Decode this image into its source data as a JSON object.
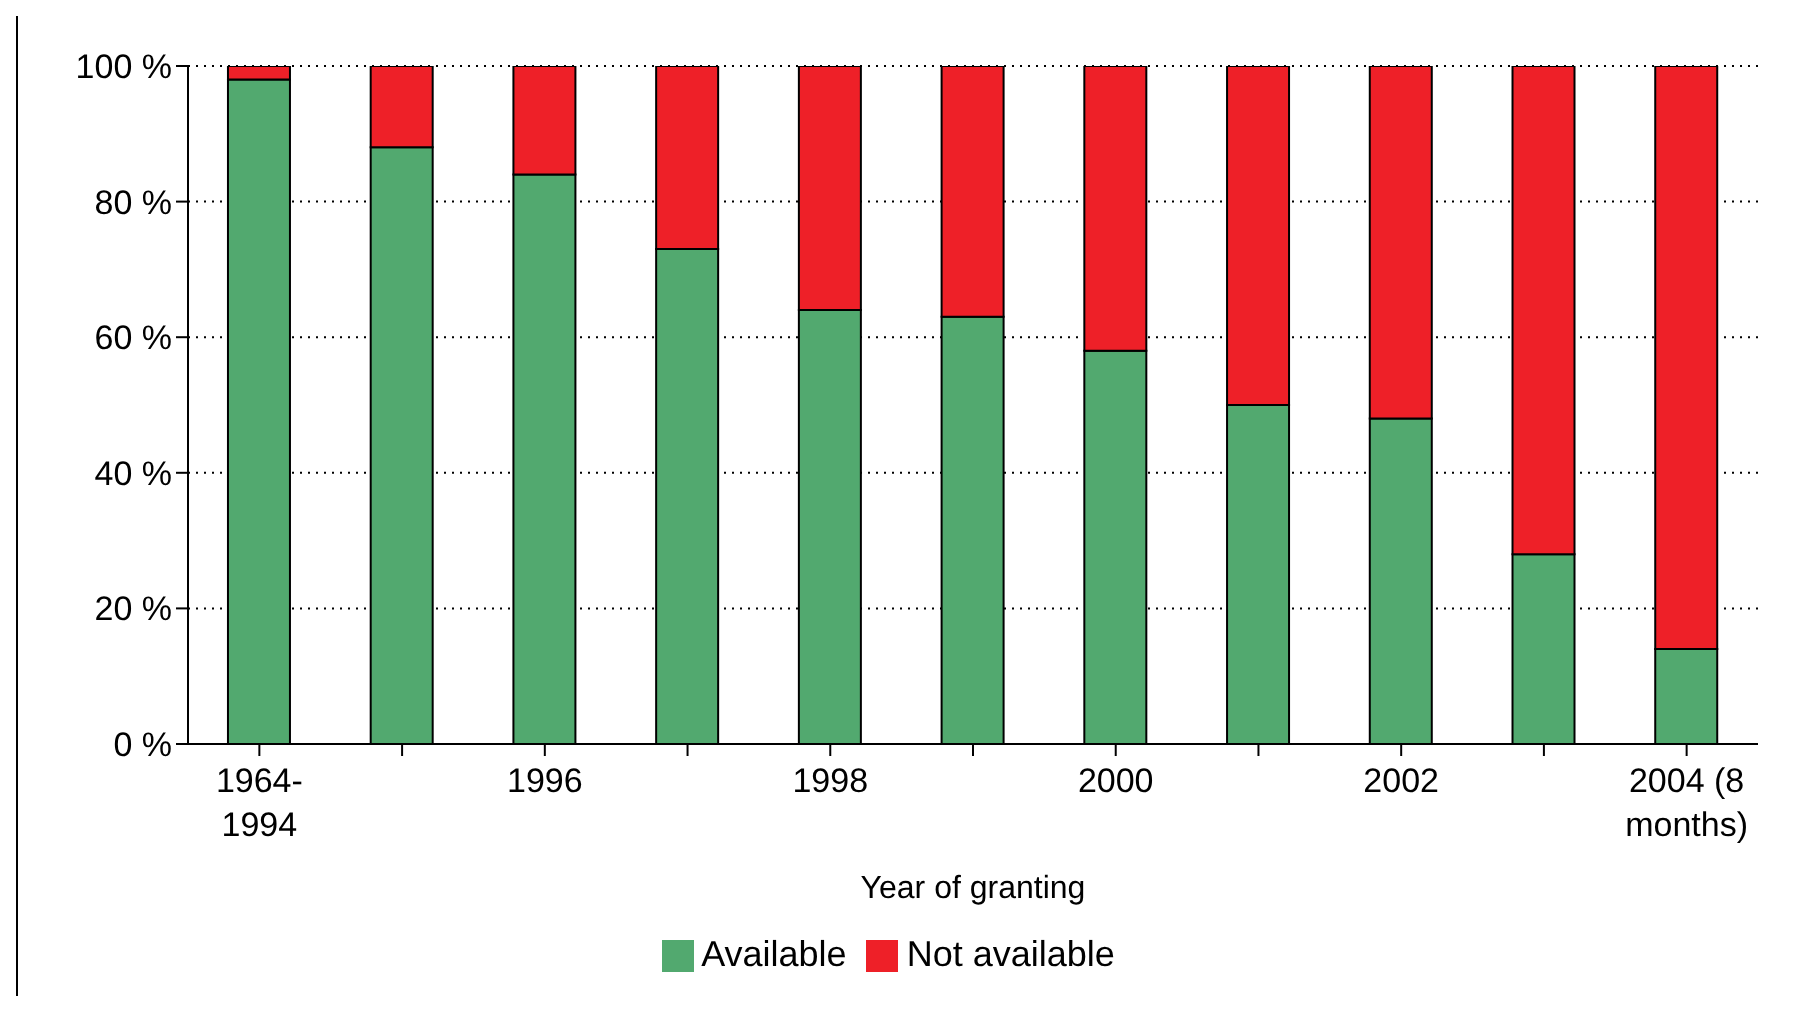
{
  "chart_data": {
    "type": "bar",
    "stacked": true,
    "xlabel": "Year of granting",
    "categories": [
      "1964-1994",
      null,
      "1996",
      null,
      "1998",
      null,
      "2000",
      null,
      "2002",
      null,
      "2004 (8 months)"
    ],
    "series": [
      {
        "name": "Available",
        "color": "#52a96f",
        "values": [
          98,
          88,
          84,
          73,
          64,
          63,
          58,
          50,
          48,
          28,
          14
        ]
      },
      {
        "name": "Not available",
        "color": "#ee2028",
        "values": [
          2,
          12,
          16,
          27,
          36,
          37,
          42,
          50,
          52,
          72,
          86
        ]
      }
    ],
    "ylim": [
      0,
      100
    ],
    "yticks": [
      {
        "value": 0,
        "label": "0 %"
      },
      {
        "value": 20,
        "label": "20 %"
      },
      {
        "value": 40,
        "label": "40 %"
      },
      {
        "value": 60,
        "label": "60 %"
      },
      {
        "value": 80,
        "label": "80 %"
      },
      {
        "value": 100,
        "label": "100 %"
      }
    ],
    "grid": "y",
    "legend": "bottom"
  }
}
